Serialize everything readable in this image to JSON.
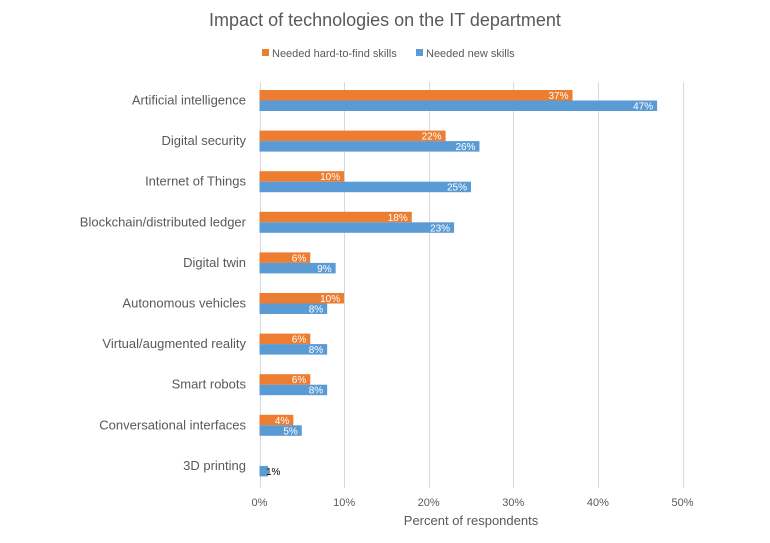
{
  "chart_data": {
    "type": "bar",
    "orientation": "horizontal",
    "title": "Impact of technologies on the IT department",
    "xlabel": "Percent of respondents",
    "ylabel": "",
    "xlim": [
      0,
      50
    ],
    "x_ticks": [
      0,
      10,
      20,
      30,
      40,
      50
    ],
    "x_tick_labels": [
      "0%",
      "10%",
      "20%",
      "30%",
      "40%",
      "50%"
    ],
    "grid": true,
    "legend_position": "top",
    "categories": [
      "Artificial intelligence",
      "Digital security",
      "Internet of Things",
      "Blockchain/distributed ledger",
      "Digital twin",
      "Autonomous vehicles",
      "Virtual/augmented reality",
      "Smart robots",
      "Conversational interfaces",
      "3D printing"
    ],
    "series": [
      {
        "name": "Needed hard-to-find skills",
        "color": "#ED7D31",
        "values": [
          37,
          22,
          10,
          18,
          6,
          10,
          6,
          6,
          4,
          0
        ],
        "labels": [
          "37%",
          "22%",
          "10%",
          "18%",
          "6%",
          "10%",
          "6%",
          "6%",
          "4%",
          ""
        ]
      },
      {
        "name": "Needed new skills",
        "color": "#5B9BD5",
        "values": [
          47,
          26,
          25,
          23,
          9,
          8,
          8,
          8,
          5,
          1
        ],
        "labels": [
          "47%",
          "26%",
          "25%",
          "23%",
          "9%",
          "8%",
          "8%",
          "8%",
          "5%",
          "1%"
        ]
      }
    ]
  }
}
